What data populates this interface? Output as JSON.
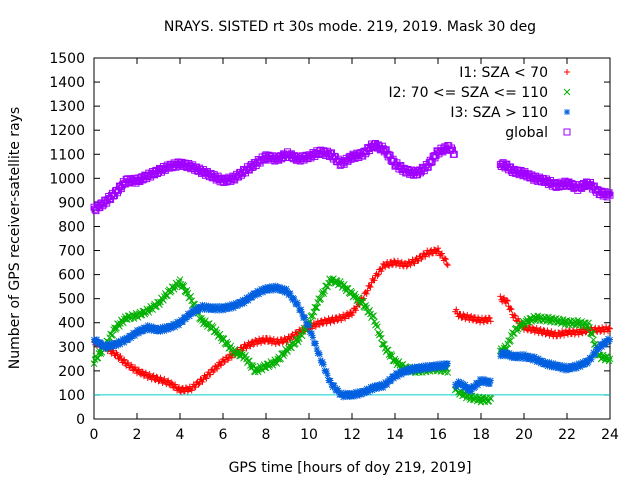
{
  "chart_data": {
    "type": "scatter",
    "title": "NRAYS. SISTED rt 30s mode. 219, 2019. Mask 30 deg",
    "xlabel": "GPS time [hours of doy 219, 2019]",
    "ylabel": "Number of GPS receiver-satellite rays",
    "xlim": [
      0,
      24
    ],
    "ylim": [
      0,
      1500
    ],
    "xticks": [
      0,
      2,
      4,
      6,
      8,
      10,
      12,
      14,
      16,
      18,
      20,
      22,
      24
    ],
    "yticks": [
      0,
      100,
      200,
      300,
      400,
      500,
      600,
      700,
      800,
      900,
      1000,
      1100,
      1200,
      1300,
      1400,
      1500
    ],
    "grid": false,
    "legend_position": "top-right",
    "threshold_line": {
      "y": 100,
      "color": "#00d0d0"
    },
    "series": [
      {
        "name": "I1: SZA < 70",
        "marker": "+",
        "color": "#ff0000",
        "x": [
          0,
          0.5,
          1,
          1.5,
          2,
          2.5,
          3,
          3.5,
          4,
          4.5,
          5,
          5.5,
          6,
          6.5,
          7,
          7.5,
          8,
          8.5,
          9,
          9.5,
          10,
          10.5,
          11,
          11.5,
          12,
          12.5,
          13,
          13.5,
          14,
          14.5,
          15,
          15.5,
          16,
          16.5,
          null,
          16.8,
          17,
          17.5,
          18,
          18.5,
          null,
          18.9,
          19.2,
          19.5,
          20,
          20.5,
          21,
          21.5,
          22,
          22.5,
          23,
          23.5,
          24
        ],
        "y": [
          320,
          300,
          270,
          230,
          200,
          180,
          165,
          150,
          120,
          125,
          160,
          200,
          240,
          270,
          300,
          320,
          330,
          320,
          330,
          360,
          380,
          400,
          410,
          420,
          440,
          500,
          580,
          640,
          650,
          640,
          660,
          690,
          700,
          640,
          null,
          450,
          430,
          420,
          410,
          415,
          null,
          500,
          490,
          430,
          380,
          370,
          360,
          350,
          360,
          360,
          370,
          370,
          375
        ]
      },
      {
        "name": "I2: 70 <= SZA <= 110",
        "marker": "x",
        "color": "#00b000",
        "x": [
          0,
          0.5,
          1,
          1.5,
          2,
          2.5,
          3,
          3.5,
          4,
          4.5,
          5,
          5.5,
          6,
          6.5,
          7,
          7.5,
          8,
          8.5,
          9,
          9.5,
          10,
          10.5,
          11,
          11.5,
          12,
          12.5,
          13,
          13.5,
          14,
          14.5,
          15,
          15.5,
          16,
          16.5,
          null,
          16.8,
          17,
          17.5,
          18,
          18.5,
          null,
          18.9,
          19.2,
          19.5,
          20,
          20.5,
          21,
          21.5,
          22,
          22.5,
          23,
          23.5,
          24
        ],
        "y": [
          240,
          300,
          380,
          420,
          430,
          450,
          480,
          530,
          570,
          500,
          410,
          380,
          330,
          280,
          260,
          200,
          220,
          240,
          290,
          330,
          400,
          500,
          580,
          560,
          520,
          480,
          420,
          300,
          240,
          210,
          200,
          205,
          210,
          200,
          null,
          130,
          110,
          90,
          80,
          80,
          null,
          280,
          300,
          360,
          400,
          420,
          415,
          410,
          400,
          400,
          390,
          260,
          250
        ]
      },
      {
        "name": "I3: SZA > 110",
        "marker": "*",
        "color": "#0060e0",
        "x": [
          0,
          0.5,
          1,
          1.5,
          2,
          2.5,
          3,
          3.5,
          4,
          4.5,
          5,
          5.5,
          6,
          6.5,
          7,
          7.5,
          8,
          8.5,
          9,
          9.5,
          10,
          10.5,
          11,
          11.5,
          12,
          12.5,
          13,
          13.5,
          14,
          14.5,
          15,
          15.5,
          16,
          16.5,
          null,
          16.8,
          17,
          17.5,
          18,
          18.5,
          null,
          18.9,
          19.2,
          19.5,
          20,
          20.5,
          21,
          21.5,
          22,
          22.5,
          23,
          23.5,
          24
        ],
        "y": [
          330,
          300,
          310,
          330,
          360,
          380,
          370,
          380,
          400,
          440,
          465,
          460,
          460,
          470,
          490,
          520,
          540,
          545,
          530,
          470,
          380,
          260,
          150,
          100,
          100,
          110,
          130,
          140,
          180,
          200,
          210,
          215,
          220,
          225,
          null,
          140,
          150,
          120,
          160,
          150,
          null,
          270,
          270,
          260,
          260,
          250,
          230,
          220,
          210,
          220,
          240,
          300,
          330
        ]
      },
      {
        "name": "global",
        "marker": "square",
        "color": "#a000ff",
        "x": [
          0,
          0.5,
          1,
          1.5,
          2,
          2.5,
          3,
          3.5,
          4,
          4.5,
          5,
          5.5,
          6,
          6.5,
          7,
          7.5,
          8,
          8.5,
          9,
          9.5,
          10,
          10.5,
          11,
          11.5,
          12,
          12.5,
          13,
          13.5,
          14,
          14.5,
          15,
          15.5,
          16,
          16.5,
          16.8,
          null,
          18.9,
          19.2,
          19.5,
          20,
          20.5,
          21,
          21.5,
          22,
          22.5,
          23,
          23.5,
          24
        ],
        "y": [
          870,
          900,
          940,
          990,
          990,
          1010,
          1030,
          1050,
          1060,
          1050,
          1030,
          1010,
          990,
          1000,
          1030,
          1060,
          1090,
          1080,
          1100,
          1080,
          1090,
          1110,
          1100,
          1060,
          1090,
          1100,
          1140,
          1120,
          1060,
          1030,
          1020,
          1050,
          1110,
          1130,
          1100,
          null,
          1060,
          1050,
          1030,
          1020,
          1000,
          990,
          970,
          980,
          960,
          980,
          940,
          930
        ]
      }
    ]
  }
}
